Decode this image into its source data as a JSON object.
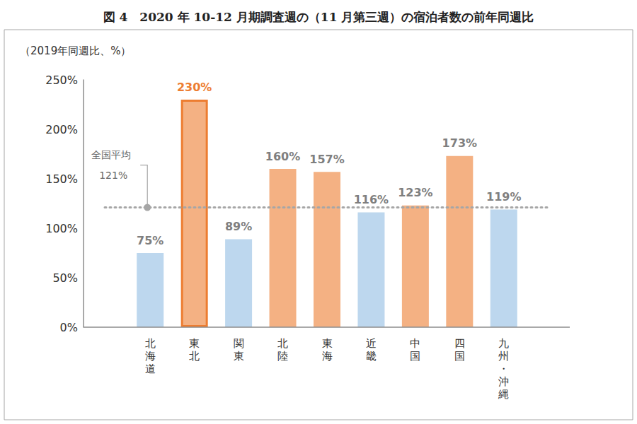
{
  "chart_data": {
    "type": "bar",
    "title": "図 4　2020 年 10-12 月期調査週の（11 月第三週）の宿泊者数の前年同週比",
    "y_label": "（2019年同週比、%）",
    "categories": [
      "北海道",
      "東北",
      "関東",
      "北陸",
      "東海",
      "近畿",
      "中国",
      "四国",
      "九州・沖縄"
    ],
    "values": [
      75,
      230,
      89,
      160,
      157,
      116,
      123,
      173,
      119
    ],
    "value_labels": [
      "75%",
      "230%",
      "89%",
      "160%",
      "157%",
      "116%",
      "123%",
      "173%",
      "119%"
    ],
    "colors": [
      "#bdd7ee",
      "#f4b183",
      "#bdd7ee",
      "#f4b183",
      "#f4b183",
      "#bdd7ee",
      "#f4b183",
      "#f4b183",
      "#bdd7ee"
    ],
    "ylim": [
      0,
      250
    ],
    "yticks": [
      {
        "value": 0,
        "label": "0%"
      },
      {
        "value": 50,
        "label": "50%"
      },
      {
        "value": 100,
        "label": "100%"
      },
      {
        "value": 150,
        "label": "150%"
      },
      {
        "value": 200,
        "label": "200%"
      },
      {
        "value": 250,
        "label": "250%"
      }
    ],
    "grid": false,
    "data_labels": true,
    "annotations": [
      {
        "text": "全国平均",
        "value": 121,
        "label": "121%"
      }
    ]
  }
}
